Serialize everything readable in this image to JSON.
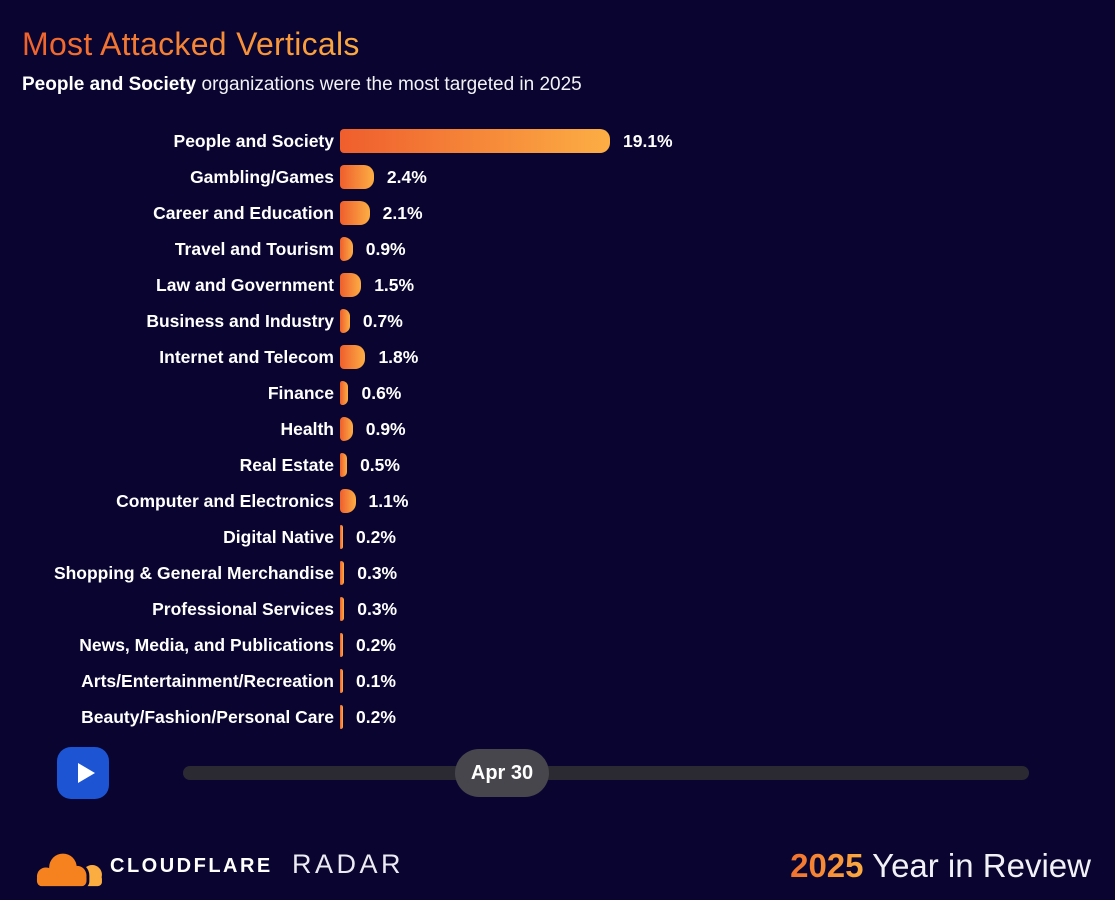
{
  "header": {
    "title": "Most Attacked Verticals",
    "subtitle_bold": "People and Society",
    "subtitle_rest": " organizations were the most targeted in 2025"
  },
  "chart_data": {
    "type": "bar",
    "orientation": "horizontal",
    "title": "Most Attacked Verticals",
    "categories": [
      "People and Society",
      "Gambling/Games",
      "Career and Education",
      "Travel and Tourism",
      "Law and Government",
      "Business and Industry",
      "Internet and Telecom",
      "Finance",
      "Health",
      "Real Estate",
      "Computer and Electronics",
      "Digital Native",
      "Shopping & General Merchandise",
      "Professional Services",
      "News, Media, and Publications",
      "Arts/Entertainment/Recreation",
      "Beauty/Fashion/Personal Care"
    ],
    "values": [
      19.1,
      2.4,
      2.1,
      0.9,
      1.5,
      0.7,
      1.8,
      0.6,
      0.9,
      0.5,
      1.1,
      0.2,
      0.3,
      0.3,
      0.2,
      0.1,
      0.2
    ],
    "value_labels": [
      "19.1%",
      "2.4%",
      "2.1%",
      "0.9%",
      "1.5%",
      "0.7%",
      "1.8%",
      "0.6%",
      "0.9%",
      "0.5%",
      "1.1%",
      "0.2%",
      "0.3%",
      "0.3%",
      "0.2%",
      "0.1%",
      "0.2%"
    ],
    "unit": "%",
    "xlim": [
      0,
      19.1
    ],
    "grid": false,
    "legend": false,
    "value_label_position": "end-of-bar",
    "bar_gradient": [
      "#ef5e2d",
      "#fcae44"
    ]
  },
  "player": {
    "play_icon": "play-triangle",
    "slider_label": "Apr 30"
  },
  "footer": {
    "brand": "CLOUDFLARE",
    "product": "RADAR",
    "year": "2025",
    "tagline": " Year in Review"
  },
  "colors": {
    "background": "#0a0530",
    "accent_orange": "#f6821f",
    "play_button_blue": "#1c54d4",
    "slider_track": "#2b2a33",
    "slider_thumb": "#47464c"
  }
}
